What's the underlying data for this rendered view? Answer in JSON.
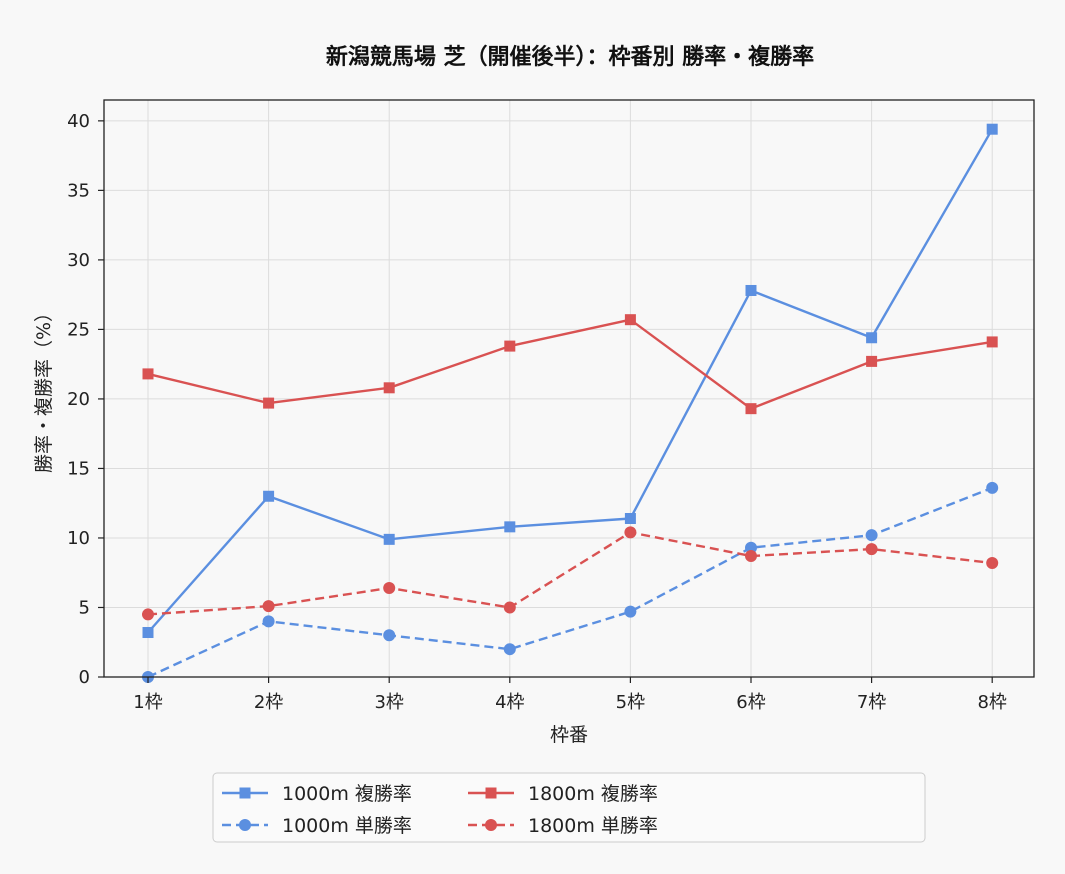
{
  "chart_data": {
    "type": "line",
    "title": "新潟競馬場 芝（開催後半）：枠番別 勝率・複勝率",
    "xlabel": "枠番",
    "ylabel": "勝率・複勝率（%）",
    "categories": [
      "1枠",
      "2枠",
      "3枠",
      "4枠",
      "5枠",
      "6枠",
      "7枠",
      "8枠"
    ],
    "ylim": [
      0,
      41.5
    ],
    "yticks": [
      0,
      5,
      10,
      15,
      20,
      25,
      30,
      35,
      40
    ],
    "grid": true,
    "legend_position": "bottom-center",
    "series": [
      {
        "name": "1000m 複勝率",
        "color": "#5b8fe0",
        "dash": "solid",
        "marker": "square",
        "values": [
          3.2,
          13.0,
          9.9,
          10.8,
          11.4,
          27.8,
          24.4,
          39.4
        ]
      },
      {
        "name": "1000m 単勝率",
        "color": "#5b8fe0",
        "dash": "dashed",
        "marker": "circle",
        "values": [
          0.0,
          4.0,
          3.0,
          2.0,
          4.7,
          9.3,
          10.2,
          13.6
        ]
      },
      {
        "name": "1800m 複勝率",
        "color": "#d95252",
        "dash": "solid",
        "marker": "square",
        "values": [
          21.8,
          19.7,
          20.8,
          23.8,
          25.7,
          19.3,
          22.7,
          24.1
        ]
      },
      {
        "name": "1800m 単勝率",
        "color": "#d95252",
        "dash": "dashed",
        "marker": "circle",
        "values": [
          4.5,
          5.1,
          6.4,
          5.0,
          10.4,
          8.7,
          9.2,
          8.2
        ]
      }
    ]
  }
}
